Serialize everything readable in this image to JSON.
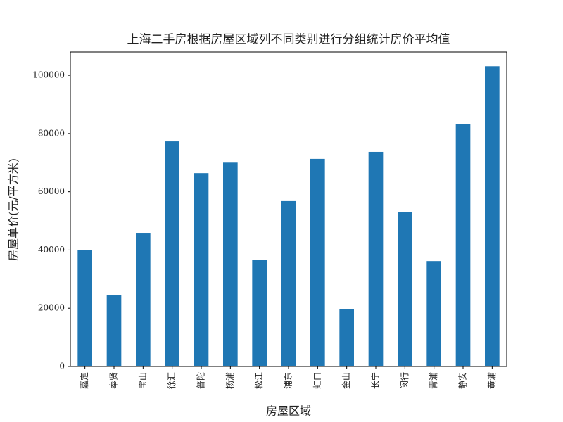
{
  "chart_data": {
    "type": "bar",
    "title": "上海二手房根据房屋区域列不同类别进行分组统计房价平均值",
    "x_label": "房屋区域",
    "y_label": "房屋单价(元/平方米)",
    "categories": [
      "嘉定",
      "奉贤",
      "宝山",
      "徐汇",
      "普陀",
      "杨浦",
      "松江",
      "浦东",
      "虹口",
      "金山",
      "长宁",
      "闵行",
      "青浦",
      "静安",
      "黄浦"
    ],
    "values": [
      40100,
      24400,
      45900,
      77300,
      66400,
      70000,
      36700,
      56800,
      71300,
      19600,
      73700,
      53100,
      36200,
      83300,
      103100
    ],
    "color": "#1f77b4",
    "ylim": [
      0,
      108000
    ],
    "yticks": [
      0,
      20000,
      40000,
      60000,
      80000,
      100000
    ],
    "grid": false
  }
}
